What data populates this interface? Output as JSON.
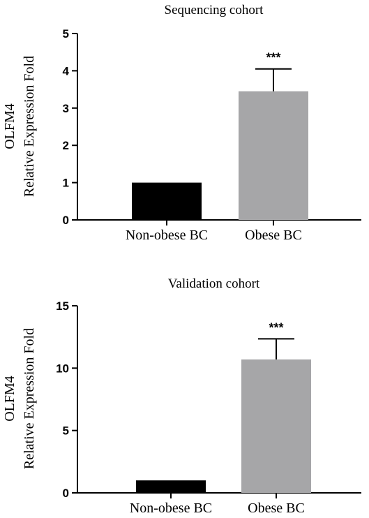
{
  "chart_data": [
    {
      "type": "bar",
      "title": "Sequencing cohort",
      "ylabel_lines": [
        "OLFM4",
        "Relative Expression Fold"
      ],
      "categories": [
        "Non-obese BC",
        "Obese BC"
      ],
      "values": [
        1.0,
        3.45
      ],
      "errors": [
        0,
        0.6
      ],
      "significance": [
        "",
        "***"
      ],
      "ylim": [
        0,
        5
      ],
      "yticks": [
        0,
        1,
        2,
        3,
        4,
        5
      ],
      "bar_colors": [
        "#000000",
        "#a6a6a8"
      ],
      "grid": false
    },
    {
      "type": "bar",
      "title": "Validation cohort",
      "ylabel_lines": [
        "OLFM4",
        "Relative Expression Fold"
      ],
      "categories": [
        "Non-obese BC",
        "Obese BC"
      ],
      "values": [
        1.0,
        10.7
      ],
      "errors": [
        0,
        1.65
      ],
      "significance": [
        "",
        "***"
      ],
      "ylim": [
        0,
        15
      ],
      "yticks": [
        0,
        5,
        10,
        15
      ],
      "bar_colors": [
        "#000000",
        "#a6a6a8"
      ],
      "grid": false
    }
  ]
}
